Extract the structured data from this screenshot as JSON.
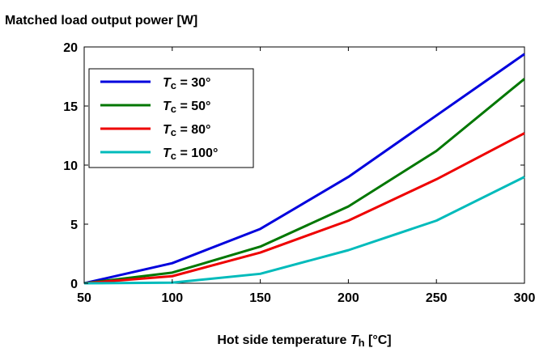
{
  "chart_data": {
    "type": "line",
    "title": "Matched load output power  [W]",
    "xlabel": {
      "prefix": "Hot side temperature ",
      "var": "T",
      "sub": "h",
      "suffix": "  [°C]"
    },
    "ylabel": "",
    "xlim": [
      50,
      300
    ],
    "ylim": [
      0,
      20
    ],
    "xticks": [
      "50",
      "100",
      "150",
      "200",
      "250",
      "300"
    ],
    "yticks": [
      "0",
      "5",
      "10",
      "15",
      "20"
    ],
    "grid": false,
    "legend_position": "top-left",
    "x": [
      50,
      100,
      150,
      200,
      250,
      300
    ],
    "series": [
      {
        "name": {
          "var": "T",
          "sub": "c",
          "rest": " = 30°"
        },
        "color": "#0000dd",
        "values": [
          0,
          1.7,
          4.6,
          9.0,
          14.2,
          19.4
        ]
      },
      {
        "name": {
          "var": "T",
          "sub": "c",
          "rest": " = 50°"
        },
        "color": "#007700",
        "values": [
          0,
          0.9,
          3.1,
          6.5,
          11.2,
          17.3
        ]
      },
      {
        "name": {
          "var": "T",
          "sub": "c",
          "rest": " = 80°"
        },
        "color": "#ee0000",
        "values": [
          0,
          0.6,
          2.6,
          5.3,
          8.8,
          12.7
        ]
      },
      {
        "name": {
          "var": "T",
          "sub": "c",
          "rest": " = 100°"
        },
        "color": "#00bbbb",
        "values": [
          0,
          0.05,
          0.8,
          2.8,
          5.3,
          9.0
        ]
      }
    ]
  }
}
